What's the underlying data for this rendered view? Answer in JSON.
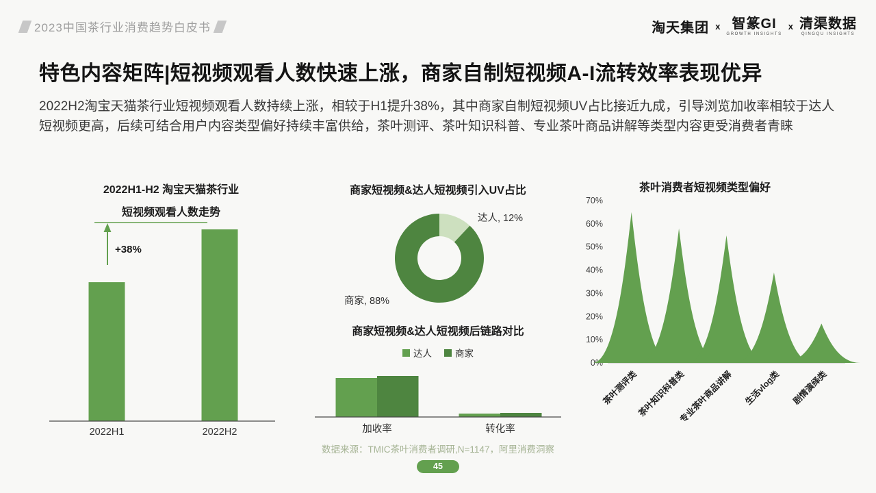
{
  "header": {
    "deck_title": "2023中国茶行业消费趋势白皮书",
    "logos": {
      "brand1": "淘天集团",
      "sep1": "x",
      "brand2": "智篆GI",
      "brand2_sub": "GROWTH INSIGHTS",
      "sep2": "x",
      "brand3": "清渠数据",
      "brand3_sub": "QINGQU INSIGHTS"
    }
  },
  "title": "特色内容矩阵|短视频观看人数快速上涨，商家自制短视频A-I流转效率表现优异",
  "paragraph": "2022H2淘宝天猫茶行业短视频观看人数持续上涨，相较于H1提升38%，其中商家自制短视频UV占比接近九成，引导浏览加收率相较于达人短视频更高，后续可结合用户内容类型偏好持续丰富供给，茶叶测评、茶叶知识科普、专业茶叶商品讲解等类型内容更受消费者青睐",
  "footer": {
    "source": "数据来源：TMIC茶叶消费者调研,N=1147，阿里消费洞察",
    "page_number": "45"
  },
  "colors": {
    "green_medium": "#63a04f",
    "green_dark": "#4e8540",
    "green_light": "#cde0bf",
    "axis": "#4a4a4a",
    "source_text": "#a6b495"
  },
  "chart_data": [
    {
      "id": "views_trend",
      "type": "bar",
      "title_line1": "2022H1-H2 淘宝天猫茶行业",
      "title_line2": "短视频观看人数走势",
      "categories": [
        "2022H1",
        "2022H2"
      ],
      "values": [
        100,
        138
      ],
      "unit": "relative index (H1=100, axis unlabeled)",
      "annotation": "+38%"
    },
    {
      "id": "uv_share",
      "type": "pie",
      "title": "商家短视频&达人短视频引入UV占比",
      "slices": [
        {
          "label": "商家",
          "value": 88
        },
        {
          "label": "达人",
          "value": 12
        }
      ],
      "labels": [
        "商家, 88%",
        "达人, 12%"
      ]
    },
    {
      "id": "post_link_compare",
      "type": "bar",
      "title": "商家短视频&达人短视频后链路对比",
      "categories": [
        "加收率",
        "转化率"
      ],
      "series": [
        {
          "name": "达人",
          "values": [
            57,
            5
          ]
        },
        {
          "name": "商家",
          "values": [
            60,
            6
          ]
        }
      ],
      "unit": "relative (axis unlabeled)",
      "legend_position": "top"
    },
    {
      "id": "type_preference",
      "type": "area",
      "title": "茶叶消费者短视频类型偏好",
      "categories": [
        "茶叶测评类",
        "茶叶知识科普类",
        "专业茶叶商品讲解",
        "生活vlog类",
        "剧情演绎类"
      ],
      "values": [
        65,
        58,
        55,
        39,
        17
      ],
      "ylabel_ticks": [
        "70%",
        "60%",
        "50%",
        "40%",
        "30%",
        "20%",
        "10%",
        "0%"
      ],
      "ylim": [
        0,
        70
      ],
      "grid": false
    }
  ]
}
